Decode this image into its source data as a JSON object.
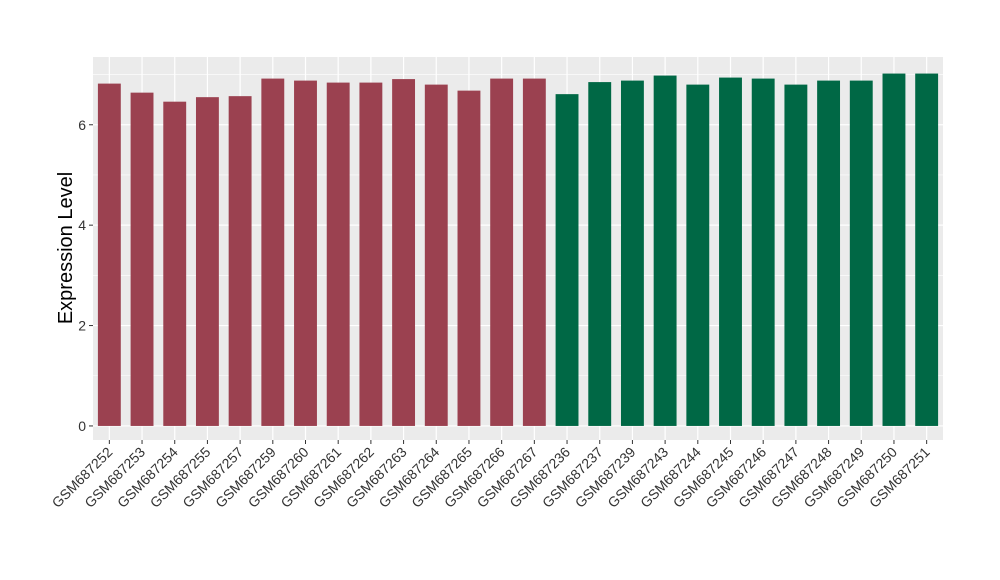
{
  "chart_data": {
    "type": "bar",
    "title": "",
    "xlabel": "",
    "ylabel": "Expression Level",
    "ylim": [
      -0.28,
      7.35
    ],
    "yticks": [
      0,
      2,
      4,
      6
    ],
    "grid": true,
    "categories": [
      "GSM687252",
      "GSM687253",
      "GSM687254",
      "GSM687255",
      "GSM687257",
      "GSM687259",
      "GSM687260",
      "GSM687261",
      "GSM687262",
      "GSM687263",
      "GSM687264",
      "GSM687265",
      "GSM687266",
      "GSM687267",
      "GSM687236",
      "GSM687237",
      "GSM687239",
      "GSM687243",
      "GSM687244",
      "GSM687245",
      "GSM687246",
      "GSM687247",
      "GSM687248",
      "GSM687249",
      "GSM687250",
      "GSM687251"
    ],
    "values": [
      6.82,
      6.64,
      6.46,
      6.55,
      6.57,
      6.92,
      6.88,
      6.84,
      6.84,
      6.91,
      6.8,
      6.68,
      6.92,
      6.92,
      6.61,
      6.85,
      6.88,
      6.98,
      6.8,
      6.94,
      6.92,
      6.8,
      6.88,
      6.88,
      7.02,
      7.02
    ],
    "bar_colors": [
      "#9b4150",
      "#9b4150",
      "#9b4150",
      "#9b4150",
      "#9b4150",
      "#9b4150",
      "#9b4150",
      "#9b4150",
      "#9b4150",
      "#9b4150",
      "#9b4150",
      "#9b4150",
      "#9b4150",
      "#9b4150",
      "#006845",
      "#006845",
      "#006845",
      "#006845",
      "#006845",
      "#006845",
      "#006845",
      "#006845",
      "#006845",
      "#006845",
      "#006845",
      "#006845"
    ],
    "panel_background": "#ebebeb",
    "grid_color": "#ffffff"
  }
}
